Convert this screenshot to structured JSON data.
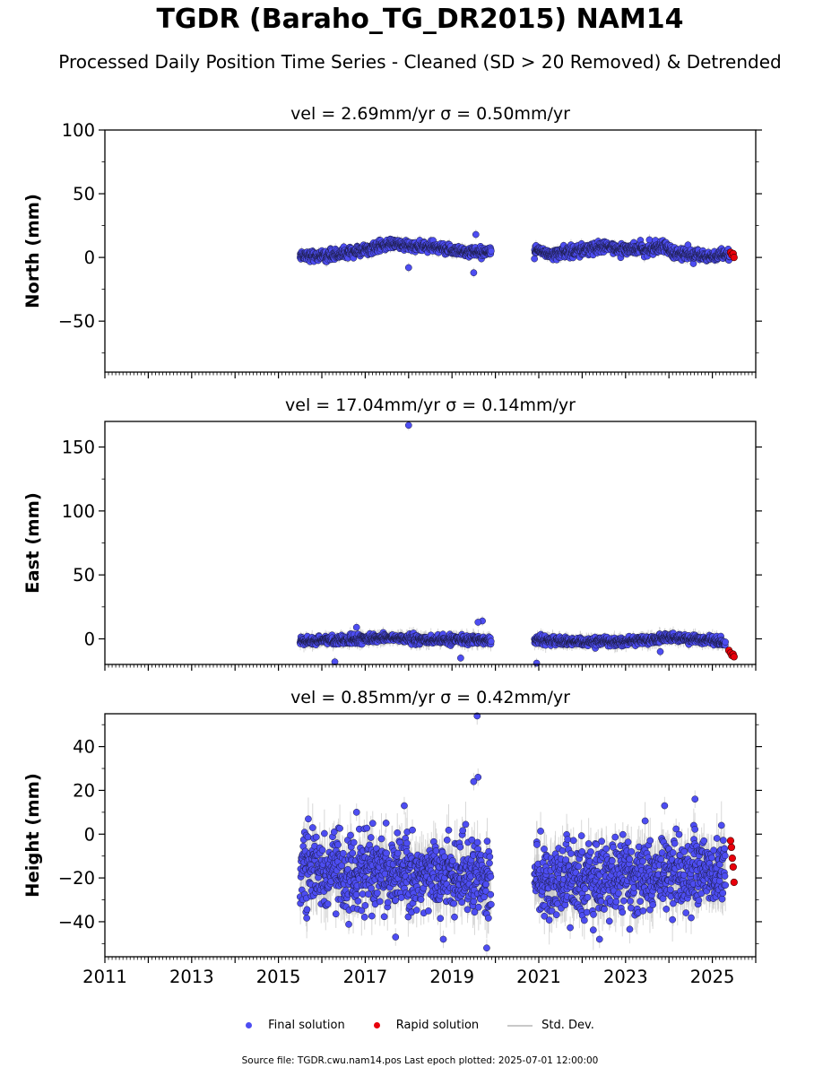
{
  "figure": {
    "title": "TGDR (Baraho_TG_DR2015) NAM14",
    "subtitle": "Processed Daily Position Time Series - Cleaned (SD > 20 Removed) & Detrended",
    "footer": "Source file: TGDR.cwu.nam14.pos  Last epoch plotted: 2025-07-01 12:00:00"
  },
  "legend": {
    "final": "Final solution",
    "rapid": "Rapid solution",
    "std": "Std. Dev."
  },
  "colors": {
    "final": "#4d4df2",
    "rapid": "#e8000b",
    "std": "#c8c8c8",
    "outline": "#1a1a40"
  },
  "chart_data": [
    {
      "type": "scatter",
      "title_vel": "vel = 2.69mm/yr",
      "title_sigma": "σ = 0.50mm/yr",
      "ylabel": "North (mm)",
      "xlim": [
        2011,
        2026
      ],
      "ylim": [
        -90,
        100
      ],
      "yticks": [
        -50,
        0,
        50,
        100
      ],
      "x_tick_years": [
        2011,
        2013,
        2015,
        2017,
        2019,
        2021,
        2023,
        2025
      ],
      "show_x_ticklabels": false,
      "segments": [
        {
          "x": [
            2015.5,
            2016.0,
            2016.5,
            2017.0,
            2017.3,
            2017.6,
            2018.0,
            2018.5,
            2019.0,
            2019.5,
            2019.9
          ],
          "y": [
            2,
            1,
            3,
            6,
            8,
            11,
            9,
            8,
            6,
            4,
            5
          ],
          "scatter": 2.0,
          "std": 3
        },
        {
          "x": [
            2020.9,
            2021.3,
            2022.0,
            2022.5,
            2023.0,
            2023.5,
            2023.9,
            2024.1,
            2024.6,
            2025.0,
            2025.4
          ],
          "y": [
            5,
            3,
            6,
            8,
            7,
            6,
            10,
            3,
            2,
            1,
            1
          ],
          "scatter": 2.2,
          "std": 3
        }
      ],
      "outliers": [
        {
          "x": 2018.0,
          "y": -8
        },
        {
          "x": 2019.55,
          "y": 18
        },
        {
          "x": 2019.5,
          "y": -12
        }
      ],
      "rapid": {
        "x": [
          2025.42,
          2025.45,
          2025.48,
          2025.5
        ],
        "y": [
          4,
          2,
          3,
          0
        ]
      }
    },
    {
      "type": "scatter",
      "title_vel": "vel = 17.04mm/yr",
      "title_sigma": "σ = 0.14mm/yr",
      "ylabel": "East (mm)",
      "xlim": [
        2011,
        2026
      ],
      "ylim": [
        -20,
        170
      ],
      "yticks": [
        0,
        50,
        100,
        150
      ],
      "x_tick_years": [
        2011,
        2013,
        2015,
        2017,
        2019,
        2021,
        2023,
        2025
      ],
      "show_x_ticklabels": false,
      "segments": [
        {
          "x": [
            2015.5,
            2016.0,
            2016.5,
            2017.0,
            2017.5,
            2018.0,
            2018.5,
            2019.0,
            2019.5,
            2019.9
          ],
          "y": [
            -2,
            -1,
            -1,
            0,
            1,
            0,
            -1,
            -1,
            0,
            -2
          ],
          "scatter": 1.6,
          "std": 4
        },
        {
          "x": [
            2020.9,
            2021.5,
            2022.0,
            2022.5,
            2023.0,
            2023.5,
            2024.0,
            2024.5,
            2025.0,
            2025.3
          ],
          "y": [
            0,
            -2,
            -3,
            -2,
            -2,
            -1,
            1,
            0,
            -1,
            -3
          ],
          "scatter": 1.6,
          "std": 4
        }
      ],
      "outliers": [
        {
          "x": 2018.0,
          "y": 167
        },
        {
          "x": 2016.3,
          "y": -18
        },
        {
          "x": 2016.8,
          "y": 9
        },
        {
          "x": 2019.7,
          "y": 14
        },
        {
          "x": 2019.6,
          "y": 13
        },
        {
          "x": 2019.2,
          "y": -15
        },
        {
          "x": 2020.95,
          "y": -19
        },
        {
          "x": 2023.8,
          "y": -10
        }
      ],
      "rapid": {
        "x": [
          2025.38,
          2025.42,
          2025.45,
          2025.48,
          2025.5
        ],
        "y": [
          -9,
          -11,
          -13,
          -12,
          -14
        ]
      }
    },
    {
      "type": "scatter",
      "title_vel": "vel = 0.85mm/yr",
      "title_sigma": "σ = 0.42mm/yr",
      "ylabel": "Height (mm)",
      "xlim": [
        2011,
        2026
      ],
      "ylim": [
        -56,
        55
      ],
      "yticks": [
        -40,
        -20,
        0,
        20,
        40
      ],
      "x_tick_years": [
        2011,
        2013,
        2015,
        2017,
        2019,
        2021,
        2023,
        2025
      ],
      "show_x_ticklabels": true,
      "segments": [
        {
          "x": [
            2015.5,
            2016.5,
            2017.5,
            2018.5,
            2019.5,
            2019.9
          ],
          "y": [
            -17,
            -18,
            -17,
            -18,
            -18,
            -22
          ],
          "scatter": 8.0,
          "std": 8
        },
        {
          "x": [
            2020.9,
            2021.5,
            2022.5,
            2023.5,
            2024.5,
            2025.3
          ],
          "y": [
            -22,
            -22,
            -20,
            -19,
            -17,
            -16
          ],
          "scatter": 8.0,
          "std": 8
        }
      ],
      "outliers": [
        {
          "x": 2019.58,
          "y": 54
        },
        {
          "x": 2019.6,
          "y": 26
        },
        {
          "x": 2019.5,
          "y": 24
        },
        {
          "x": 2016.8,
          "y": 10
        },
        {
          "x": 2017.9,
          "y": 13
        },
        {
          "x": 2024.6,
          "y": 16
        },
        {
          "x": 2023.9,
          "y": 13
        },
        {
          "x": 2019.8,
          "y": -52
        },
        {
          "x": 2017.7,
          "y": -47
        },
        {
          "x": 2018.8,
          "y": -48
        },
        {
          "x": 2022.4,
          "y": -48
        }
      ],
      "rapid": {
        "x": [
          2025.42,
          2025.44,
          2025.46,
          2025.48,
          2025.5
        ],
        "y": [
          -3,
          -6,
          -11,
          -15,
          -22
        ]
      }
    }
  ]
}
